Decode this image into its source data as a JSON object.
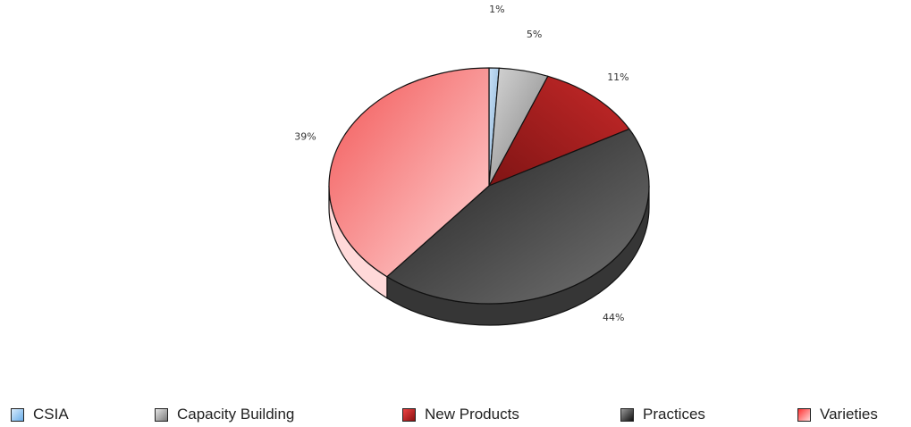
{
  "chart_data": {
    "type": "pie",
    "title": "",
    "series": [
      {
        "name": "CSIA",
        "value": 1,
        "label": "1%",
        "color": "#9ccaf4"
      },
      {
        "name": "Capacity Building",
        "value": 5,
        "label": "5%",
        "color": "#a6a6a6"
      },
      {
        "name": "New Products",
        "value": 11,
        "label": "11%",
        "color": "#c41e1e"
      },
      {
        "name": "Practices",
        "value": 44,
        "label": "44%",
        "color": "#444444"
      },
      {
        "name": "Varieties",
        "value": 39,
        "label": "39%",
        "color": "#ff5a5a"
      }
    ],
    "legend_position": "bottom",
    "style": "3d-pie"
  }
}
